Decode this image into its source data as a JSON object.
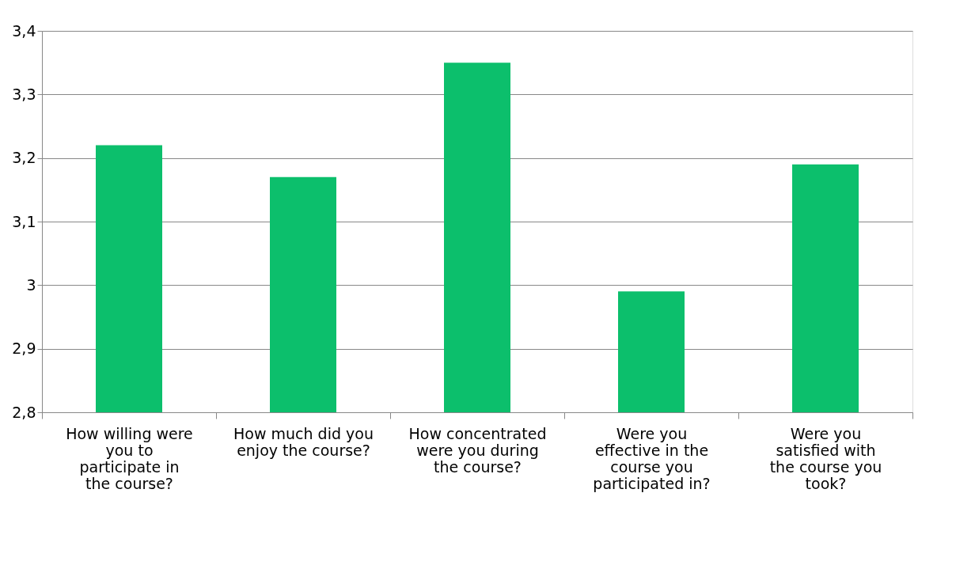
{
  "chart_data": {
    "type": "bar",
    "categories": [
      "How willing were you to participate in the course?",
      "How much did you enjoy the course?",
      "How concentrated were you during the course?",
      "Were you effective in the course you participated in?",
      "Were you satisfied with the course you took?"
    ],
    "values": [
      3.22,
      3.17,
      3.35,
      2.99,
      3.19
    ],
    "color": "#0cbf6c",
    "ylim": [
      2.8,
      3.4
    ],
    "yticks": [
      {
        "value": 2.8,
        "label": "2,8"
      },
      {
        "value": 2.9,
        "label": "2,9"
      },
      {
        "value": 3,
        "label": "3"
      },
      {
        "value": 3.1,
        "label": "3,1"
      },
      {
        "value": 3.2,
        "label": "3,2"
      },
      {
        "value": 3.3,
        "label": "3,3"
      },
      {
        "value": 3.4,
        "label": "3,4"
      }
    ],
    "grid": "y"
  }
}
